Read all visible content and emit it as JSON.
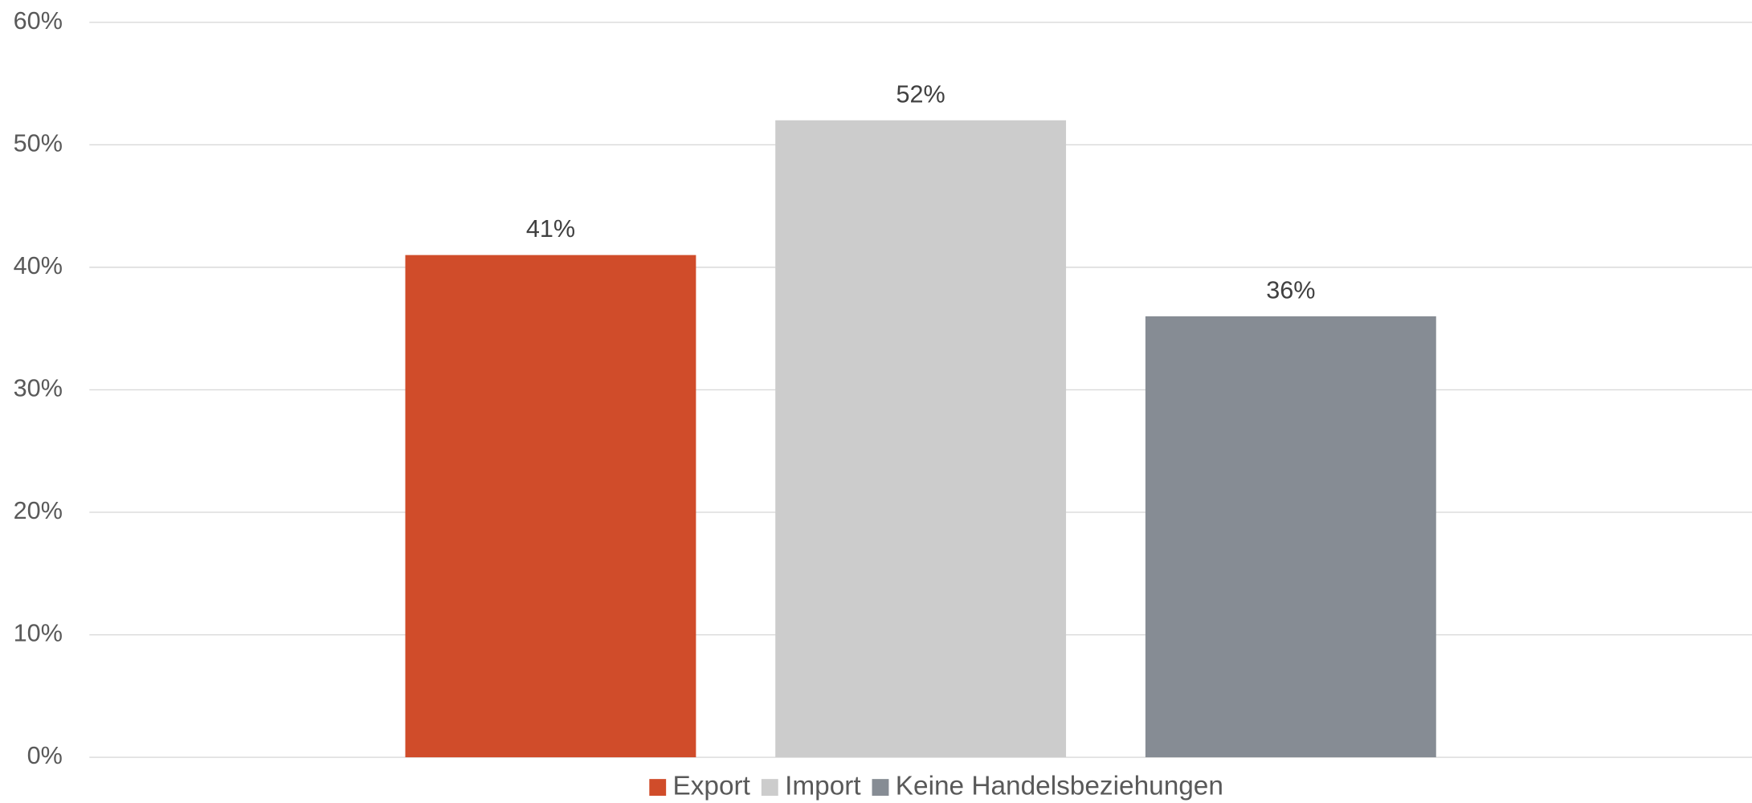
{
  "chart_data": {
    "type": "bar",
    "categories": [
      null
    ],
    "series": [
      {
        "name": "Export",
        "color": "#d04c2a",
        "values": [
          41
        ],
        "value_labels": [
          "41%"
        ]
      },
      {
        "name": "Import",
        "color": "#cccccc",
        "values": [
          52
        ],
        "value_labels": [
          "52%"
        ]
      },
      {
        "name": "Keine Handelsbeziehungen",
        "color": "#868c94",
        "values": [
          36
        ],
        "value_labels": [
          "36%"
        ]
      }
    ],
    "ylim": [
      0,
      60
    ],
    "yticks": [
      {
        "value": 0,
        "label": "0%"
      },
      {
        "value": 10,
        "label": "10%"
      },
      {
        "value": 20,
        "label": "20%"
      },
      {
        "value": 30,
        "label": "30%"
      },
      {
        "value": 40,
        "label": "40%"
      },
      {
        "value": 50,
        "label": "50%"
      },
      {
        "value": 60,
        "label": "60%"
      }
    ],
    "grid": true,
    "legend": "bottom"
  }
}
